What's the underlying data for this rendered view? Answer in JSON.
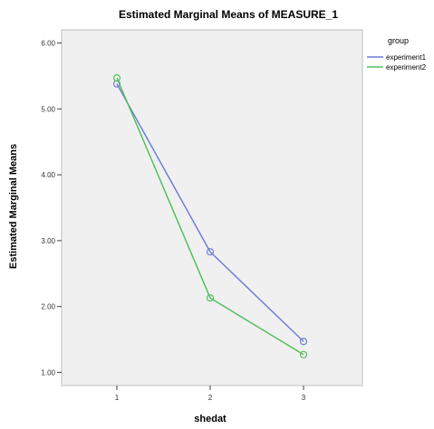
{
  "chart_data": {
    "type": "line",
    "title": "Estimated Marginal Means of MEASURE_1",
    "xlabel": "shedat",
    "ylabel": "Estimated Marginal Means",
    "categories": [
      "1",
      "2",
      "3"
    ],
    "yticks": [
      "1.00",
      "2.00",
      "3.00",
      "4.00",
      "5.00",
      "6.00"
    ],
    "ylim": [
      0.8,
      6.2
    ],
    "grid": false,
    "legend": {
      "title": "group",
      "position": "right"
    },
    "series": [
      {
        "name": "experiment1",
        "color": "#6f7fd6",
        "values": [
          5.38,
          2.83,
          1.47
        ]
      },
      {
        "name": "experiment2",
        "color": "#55c060",
        "values": [
          5.47,
          2.13,
          1.27
        ]
      }
    ]
  }
}
